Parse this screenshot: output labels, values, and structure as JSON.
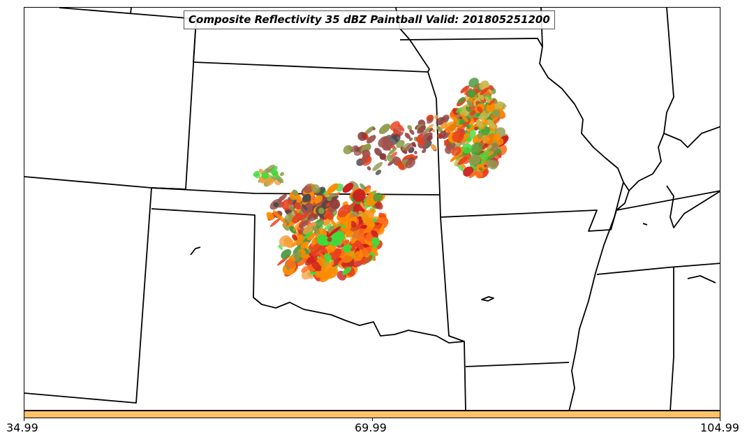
{
  "title": "Composite Reflectivity 35 dBZ Paintball Valid: 201805251200",
  "colorbar": {
    "color": "#ffc266",
    "ticks": [
      "34.99",
      "69.99",
      "104.99"
    ]
  },
  "colors": {
    "border_line": "#000000",
    "storm_palette": [
      "#ff8c00",
      "#ff6a1a",
      "#e8401c",
      "#cc1f1f",
      "#3cdc3c",
      "#4a9a3a",
      "#8d9a4a",
      "#8b3a3a",
      "#a0524c",
      "#4a4a4a",
      "#f0a040",
      "#c8b84a"
    ]
  }
}
